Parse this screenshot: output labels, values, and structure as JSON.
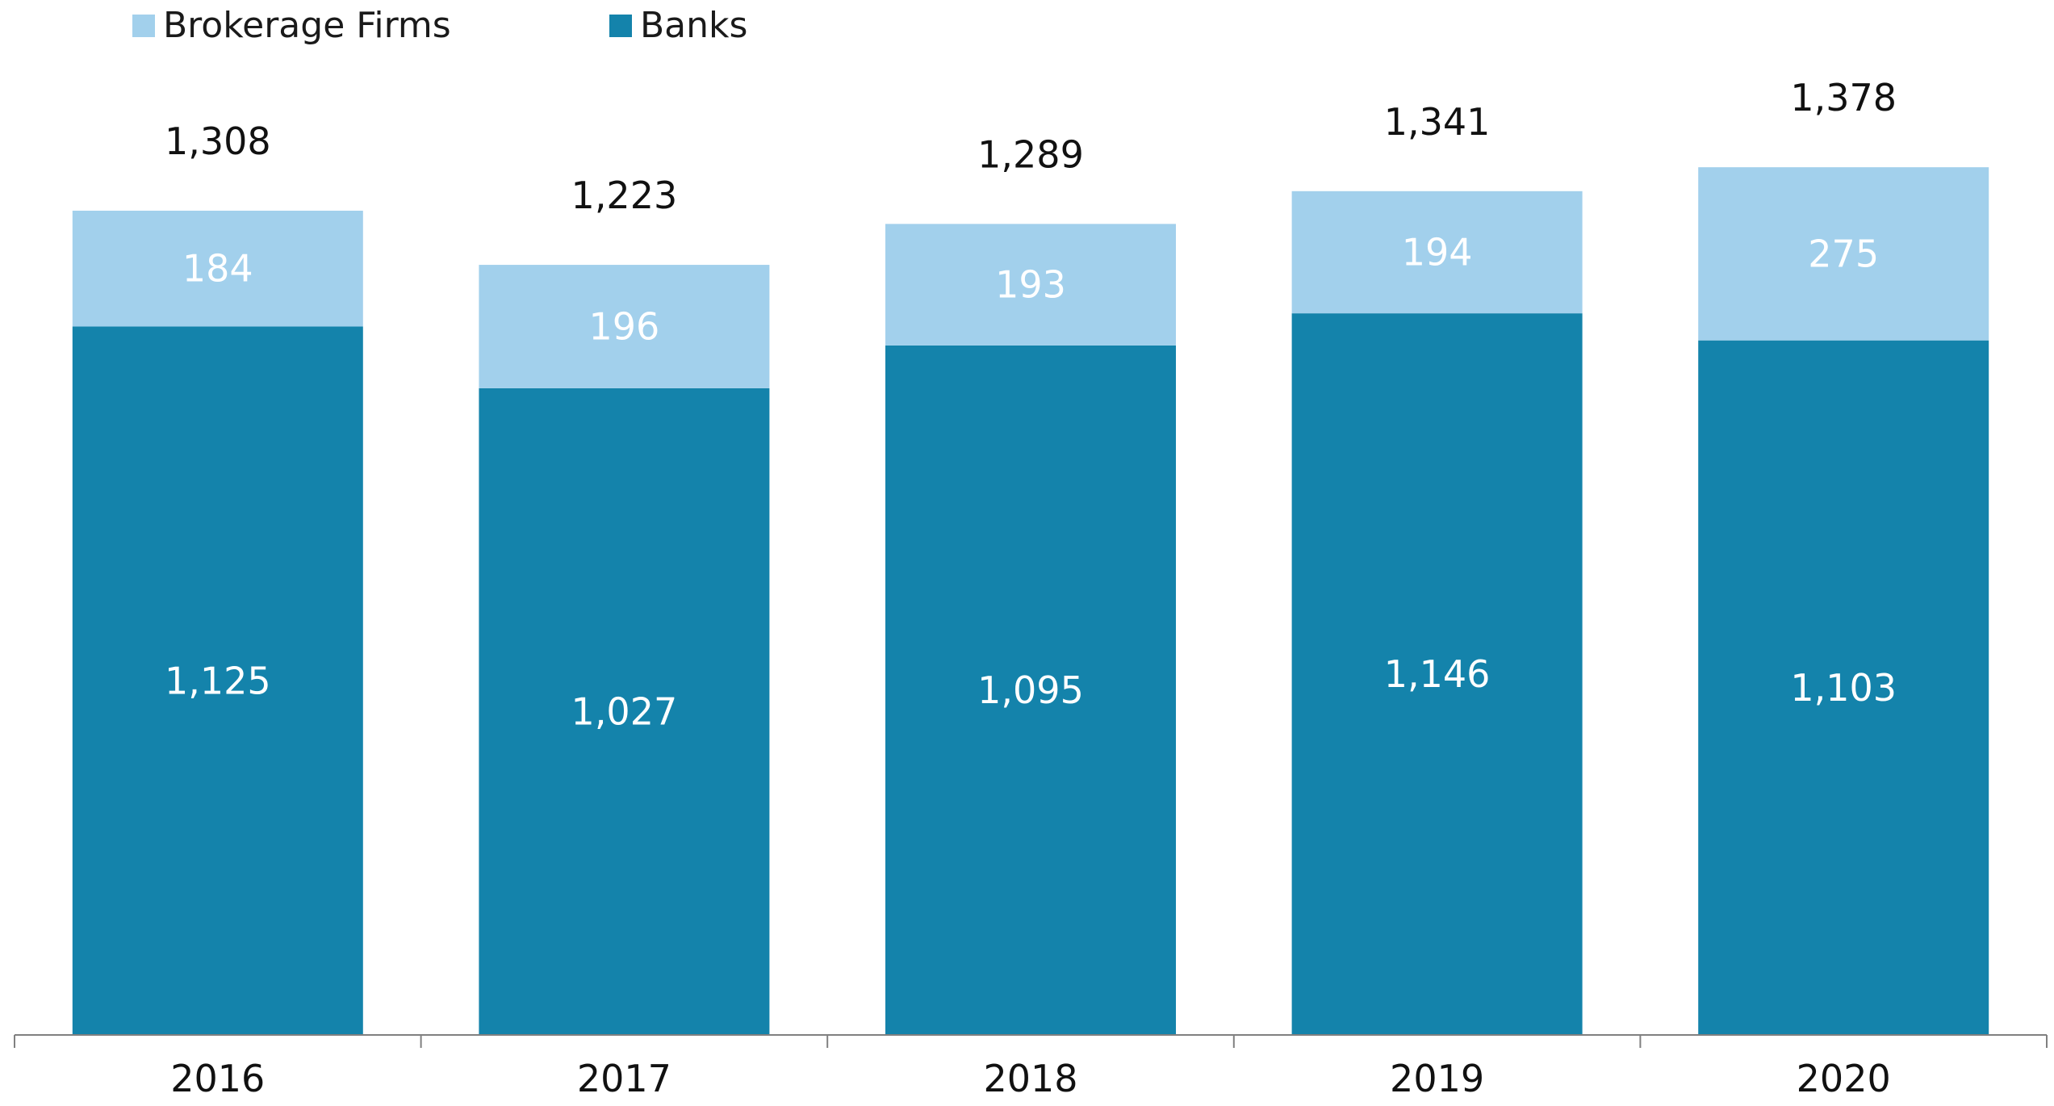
{
  "chart_data": {
    "type": "bar",
    "stacked": true,
    "categories": [
      "2016",
      "2017",
      "2018",
      "2019",
      "2020"
    ],
    "series": [
      {
        "name": "Banks",
        "values": [
          1125,
          1027,
          1095,
          1146,
          1103
        ],
        "color": "#1483ab"
      },
      {
        "name": "Brokerage Firms",
        "values": [
          184,
          196,
          193,
          194,
          275
        ],
        "color": "#a2d0ec"
      }
    ],
    "segment_labels": {
      "Banks": [
        "1,125",
        "1,027",
        "1,095",
        "1,146",
        "1,103"
      ],
      "Brokerage Firms": [
        "184",
        "196",
        "193",
        "194",
        "275"
      ]
    },
    "totals": [
      "1,308",
      "1,223",
      "1,289",
      "1,341",
      "1,378"
    ],
    "legend": {
      "position": "top-left",
      "items": [
        {
          "label": "Brokerage Firms",
          "color": "#a2d0ec"
        },
        {
          "label": "Banks",
          "color": "#1483ab"
        }
      ]
    },
    "ylim": [
      0,
      1400
    ],
    "grid": false,
    "title": "",
    "xlabel": "",
    "ylabel": ""
  }
}
